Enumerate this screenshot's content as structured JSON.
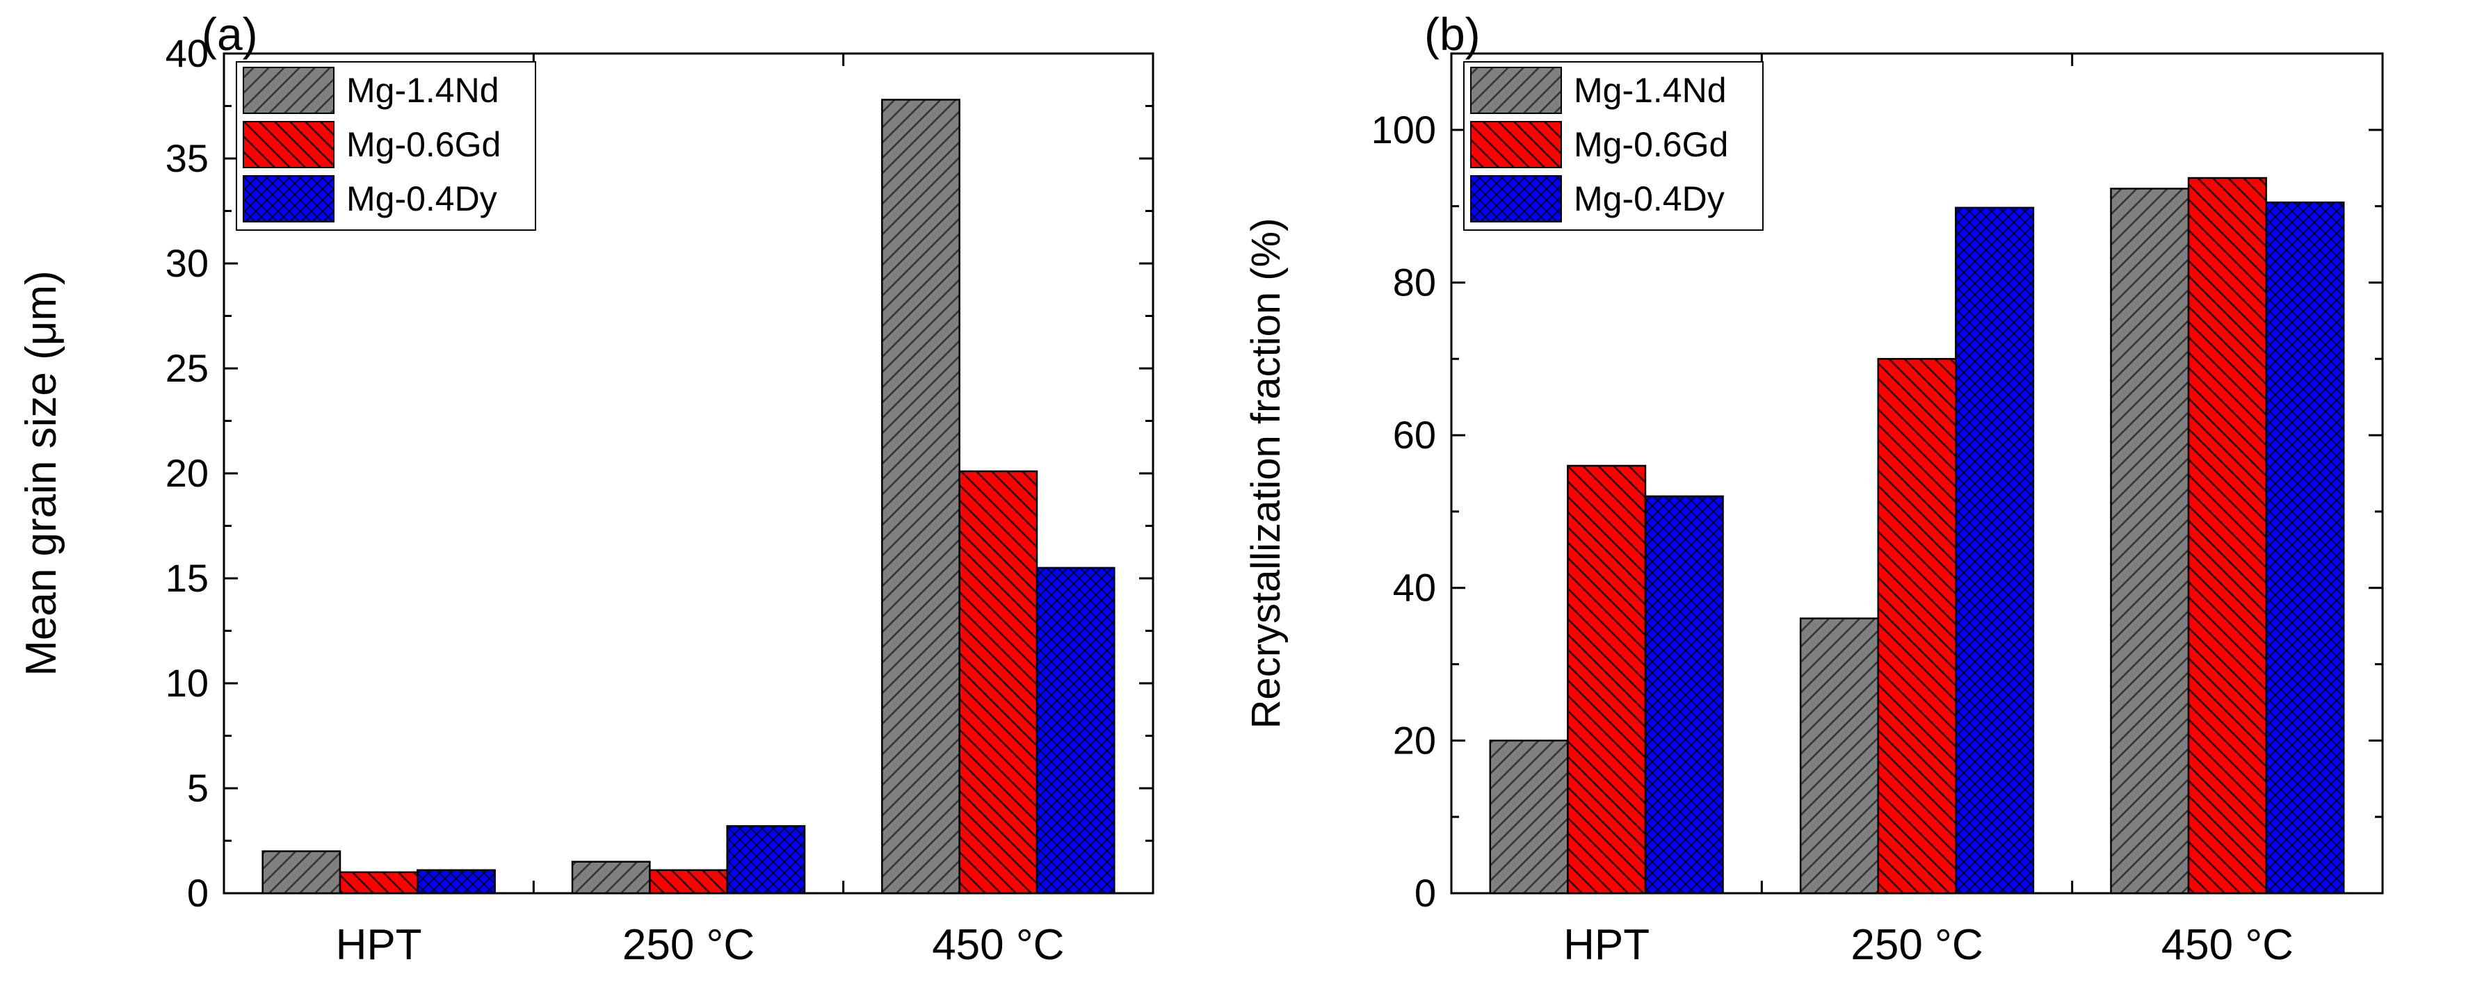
{
  "panels": [
    {
      "label": "(a)"
    },
    {
      "label": "(b)"
    }
  ],
  "chart_data": [
    {
      "type": "bar",
      "panel_label": "(a)",
      "title": "",
      "xlabel": "",
      "ylabel": "Mean grain size (μm)",
      "categories": [
        "HPT",
        "250 °C",
        "450 °C"
      ],
      "ylim": [
        0,
        40
      ],
      "yticks": [
        0,
        5,
        10,
        15,
        20,
        25,
        30,
        35,
        40
      ],
      "series": [
        {
          "name": "Mg-1.4Nd",
          "values": [
            2.0,
            1.5,
            37.8
          ],
          "color": "#808080",
          "pattern": "hatch-forward"
        },
        {
          "name": "Mg-0.6Gd",
          "values": [
            1.0,
            1.1,
            20.1
          ],
          "color": "#ff0000",
          "pattern": "hatch-backward"
        },
        {
          "name": "Mg-0.4Dy",
          "values": [
            1.1,
            3.2,
            15.5
          ],
          "color": "#0000ff",
          "pattern": "crosshatch"
        }
      ],
      "legend_position": "top-left",
      "grid": false
    },
    {
      "type": "bar",
      "panel_label": "(b)",
      "title": "",
      "xlabel": "",
      "ylabel": "Recrystallization fraction (%)",
      "categories": [
        "HPT",
        "250 °C",
        "450 °C"
      ],
      "ylim": [
        0,
        110
      ],
      "yticks": [
        0,
        20,
        40,
        60,
        80,
        100
      ],
      "series": [
        {
          "name": "Mg-1.4Nd",
          "values": [
            20,
            36,
            92.3
          ],
          "color": "#808080",
          "pattern": "hatch-forward"
        },
        {
          "name": "Mg-0.6Gd",
          "values": [
            56,
            70,
            93.7
          ],
          "color": "#ff0000",
          "pattern": "hatch-backward"
        },
        {
          "name": "Mg-0.4Dy",
          "values": [
            52,
            89.8,
            90.5
          ],
          "color": "#0000ff",
          "pattern": "crosshatch"
        }
      ],
      "legend_position": "top-left",
      "grid": false
    }
  ]
}
